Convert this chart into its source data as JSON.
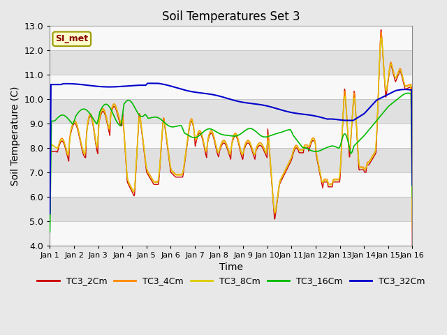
{
  "title": "Soil Temperatures Set 3",
  "xlabel": "Time",
  "ylabel": "Soil Temperature (C)",
  "ylim": [
    4.0,
    13.0
  ],
  "yticks": [
    4.0,
    5.0,
    6.0,
    7.0,
    8.0,
    9.0,
    10.0,
    11.0,
    12.0,
    13.0
  ],
  "xlim": [
    0,
    15
  ],
  "xtick_labels": [
    "Jan 1",
    "Jan 2",
    "Jan 3",
    "Jan 4",
    "Jan 5",
    "Jan 6",
    "Jan 7",
    "Jan 8",
    "Jan 9",
    "Jan 10",
    "Jan 11",
    "Jan 12",
    "Jan 13",
    "Jan 14",
    "Jan 15",
    "Jan 16"
  ],
  "si_met_label": "SI_met",
  "legend_entries": [
    "TC3_2Cm",
    "TC3_4Cm",
    "TC3_8Cm",
    "TC3_16Cm",
    "TC3_32Cm"
  ],
  "line_colors": [
    "#cc0000",
    "#ff8800",
    "#ddcc00",
    "#00bb00",
    "#0000cc"
  ],
  "bg_color": "#e8e8e8",
  "stripe_light": "#f8f8f8",
  "stripe_dark": "#e0e0e0",
  "figsize": [
    6.4,
    4.8
  ],
  "dpi": 100
}
